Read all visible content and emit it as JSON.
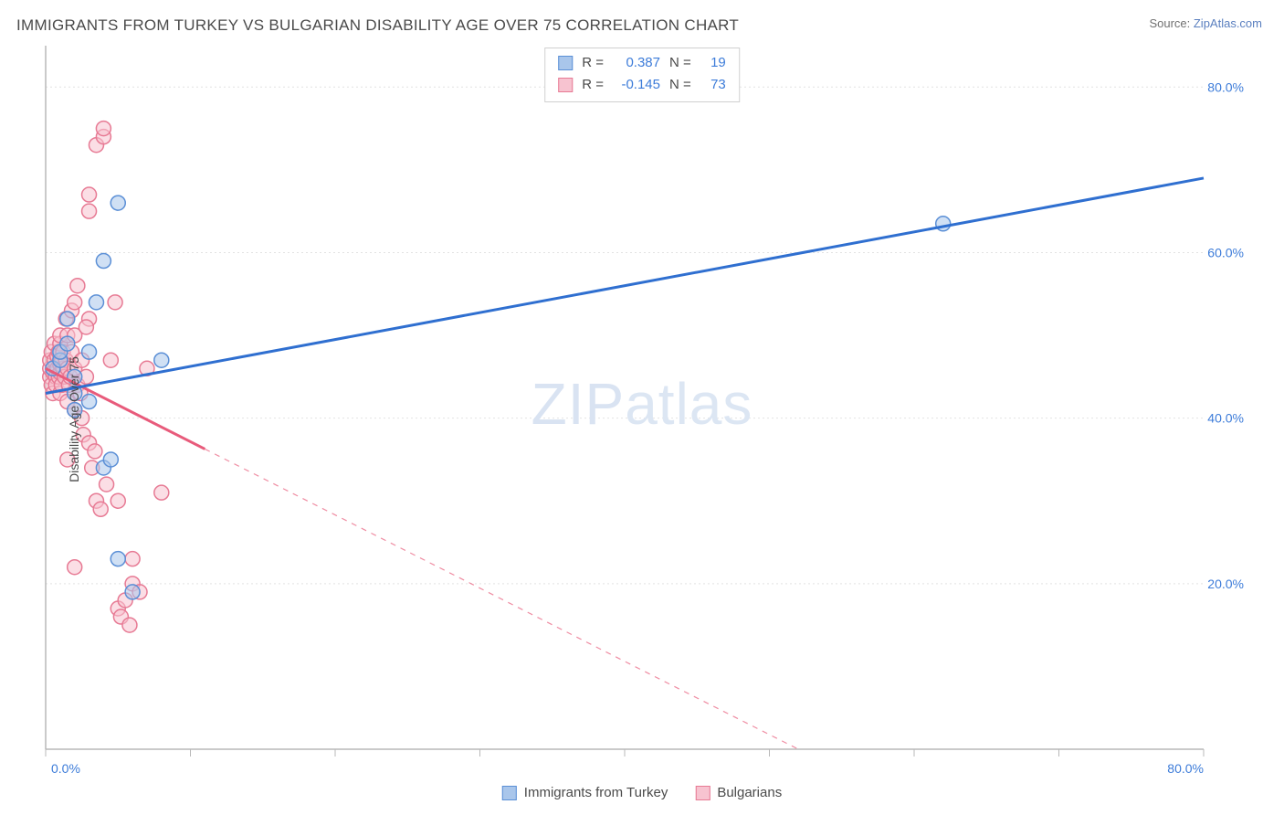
{
  "title": "IMMIGRANTS FROM TURKEY VS BULGARIAN DISABILITY AGE OVER 75 CORRELATION CHART",
  "source_label": "Source: ",
  "source_name": "ZipAtlas.com",
  "ylabel": "Disability Age Over 75",
  "watermark": {
    "bold": "ZIP",
    "thin": "atlas"
  },
  "chart": {
    "type": "scatter",
    "background_color": "#ffffff",
    "grid_color": "#e2e2e2",
    "grid_dash": "2,3",
    "axis_color": "#b8b8b8",
    "label_color": "#3d7cd9",
    "xlim": [
      0,
      80
    ],
    "ylim": [
      0,
      85
    ],
    "xticks": [
      0,
      10,
      20,
      30,
      40,
      50,
      60,
      70,
      80
    ],
    "xtick_labels": {
      "0": "0.0%",
      "80": "80.0%"
    },
    "yticks": [
      20,
      40,
      60,
      80
    ],
    "ytick_labels": {
      "20": "20.0%",
      "40": "40.0%",
      "60": "60.0%",
      "80": "80.0%"
    },
    "marker_radius": 8,
    "marker_opacity": 0.55,
    "line_width": 3
  },
  "series": [
    {
      "key": "turkey",
      "label": "Immigrants from Turkey",
      "color_stroke": "#5b8fd6",
      "color_fill": "#a9c6eb",
      "line_color": "#2f6fd0",
      "r_label": "R =",
      "r_value": "0.387",
      "n_label": "N =",
      "n_value": "19",
      "trend": {
        "x1": 0,
        "y1": 43.0,
        "x2": 80,
        "y2": 69.0,
        "solid_until_x": 80
      },
      "points": [
        [
          0.5,
          46
        ],
        [
          1,
          47
        ],
        [
          1,
          48
        ],
        [
          1.5,
          49
        ],
        [
          1.5,
          52
        ],
        [
          2,
          45
        ],
        [
          2,
          43
        ],
        [
          2,
          41
        ],
        [
          3,
          48
        ],
        [
          3,
          42
        ],
        [
          3.5,
          54
        ],
        [
          4,
          59
        ],
        [
          4,
          34
        ],
        [
          4.5,
          35
        ],
        [
          5,
          66
        ],
        [
          5,
          23
        ],
        [
          6,
          19
        ],
        [
          8,
          47
        ],
        [
          62,
          63.5
        ]
      ]
    },
    {
      "key": "bulgarians",
      "label": "Bulgarians",
      "color_stroke": "#e77a94",
      "color_fill": "#f7c3d0",
      "line_color": "#e85b7b",
      "r_label": "R =",
      "r_value": "-0.145",
      "n_label": "N =",
      "n_value": "73",
      "trend": {
        "x1": 0,
        "y1": 46.0,
        "x2": 52,
        "y2": 0.0,
        "solid_until_x": 11
      },
      "points": [
        [
          0.3,
          45
        ],
        [
          0.3,
          46
        ],
        [
          0.3,
          47
        ],
        [
          0.4,
          44
        ],
        [
          0.4,
          48
        ],
        [
          0.5,
          43
        ],
        [
          0.5,
          46
        ],
        [
          0.5,
          45.5
        ],
        [
          0.6,
          47
        ],
        [
          0.6,
          49
        ],
        [
          0.7,
          45
        ],
        [
          0.7,
          44
        ],
        [
          0.8,
          46
        ],
        [
          0.8,
          47.5
        ],
        [
          0.9,
          45
        ],
        [
          0.9,
          48
        ],
        [
          1,
          43
        ],
        [
          1,
          45.5
        ],
        [
          1,
          46.5
        ],
        [
          1,
          49
        ],
        [
          1,
          50
        ],
        [
          1.1,
          44
        ],
        [
          1.1,
          47
        ],
        [
          1.2,
          46
        ],
        [
          1.2,
          48
        ],
        [
          1.3,
          45
        ],
        [
          1.4,
          47
        ],
        [
          1.4,
          52
        ],
        [
          1.5,
          42
        ],
        [
          1.5,
          46
        ],
        [
          1.5,
          50
        ],
        [
          1.6,
          44
        ],
        [
          1.7,
          45
        ],
        [
          1.8,
          48
        ],
        [
          1.8,
          53
        ],
        [
          2,
          41
        ],
        [
          2,
          46
        ],
        [
          2,
          50
        ],
        [
          2,
          54
        ],
        [
          2.2,
          44
        ],
        [
          2.2,
          56
        ],
        [
          2.4,
          43
        ],
        [
          2.5,
          40
        ],
        [
          2.5,
          47
        ],
        [
          2.6,
          38
        ],
        [
          2.8,
          45
        ],
        [
          3,
          37
        ],
        [
          3,
          52
        ],
        [
          3,
          65
        ],
        [
          3,
          67
        ],
        [
          3.2,
          34
        ],
        [
          3.4,
          36
        ],
        [
          3.5,
          30
        ],
        [
          3.5,
          73
        ],
        [
          3.8,
          29
        ],
        [
          4,
          74
        ],
        [
          4,
          75
        ],
        [
          4.2,
          32
        ],
        [
          4.5,
          47
        ],
        [
          4.8,
          54
        ],
        [
          5,
          30
        ],
        [
          5,
          17
        ],
        [
          5.2,
          16
        ],
        [
          5.5,
          18
        ],
        [
          5.8,
          15
        ],
        [
          6,
          20
        ],
        [
          6,
          23
        ],
        [
          6.5,
          19
        ],
        [
          7,
          46
        ],
        [
          8,
          31
        ],
        [
          2,
          22
        ],
        [
          1.5,
          35
        ],
        [
          2.8,
          51
        ]
      ]
    }
  ]
}
